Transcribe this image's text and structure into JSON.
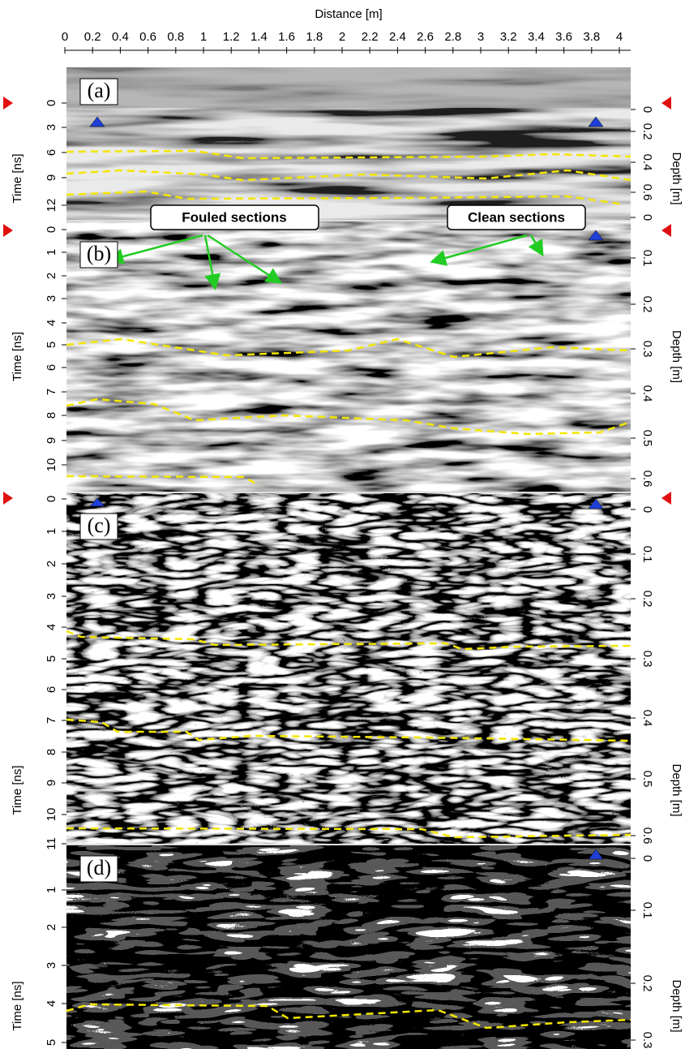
{
  "x_axis": {
    "label": "Distance [m]",
    "ticks": [
      "0",
      "0.2",
      "0.4",
      "0.6",
      "0.8",
      "1",
      "1.2",
      "1.4",
      "1.6",
      "1.8",
      "2",
      "2.2",
      "2.4",
      "2.6",
      "2.8",
      "3",
      "3.2",
      "3.4",
      "3.6",
      "3.8",
      "4"
    ]
  },
  "panels": [
    {
      "label": "(a)",
      "time_axis": {
        "label": "Time [ns]",
        "ticks": [
          "0",
          "3",
          "6",
          "9",
          "12"
        ]
      },
      "depth_axis": {
        "label": "Depth [m]",
        "ticks": [
          "0",
          "0.2",
          "0.4",
          "0.6"
        ]
      }
    },
    {
      "label": "(b)",
      "time_axis": {
        "label": "Time [ns]",
        "ticks": [
          "0",
          "1",
          "2",
          "3",
          "4",
          "5",
          "6",
          "7",
          "8",
          "9",
          "10"
        ]
      },
      "depth_axis": {
        "label": "Depth [m]",
        "ticks": [
          "0",
          "0.1",
          "0.2",
          "0.3",
          "0.4",
          "0.5",
          "0.6"
        ]
      }
    },
    {
      "label": "(c)",
      "time_axis": {
        "label": "Time [ns]",
        "ticks": [
          "0",
          "1",
          "2",
          "3",
          "4",
          "5",
          "6",
          "7",
          "8",
          "9",
          "10",
          "11"
        ]
      },
      "depth_axis": {
        "label": "Depth [m]",
        "ticks": [
          "0",
          "0.1",
          "0.2",
          "0.3",
          "0.4",
          "0.5",
          "0.6"
        ]
      }
    },
    {
      "label": "(d)",
      "time_axis": {
        "label": "Time [ns]",
        "ticks": [
          "1",
          "2",
          "3",
          "4",
          "5"
        ]
      },
      "depth_axis": {
        "label": "Depth [m]",
        "ticks": [
          "0",
          "0.1",
          "0.2",
          "0.3"
        ]
      }
    }
  ],
  "annotations": {
    "fouled": "Fouled sections",
    "clean": "Clean sections"
  }
}
